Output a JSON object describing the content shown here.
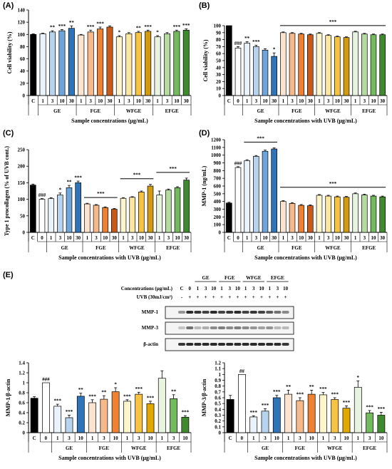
{
  "panels": [
    {
      "label": "(A)"
    },
    {
      "label": "(B)"
    },
    {
      "label": "(C)"
    },
    {
      "label": "(D)"
    },
    {
      "label": "(E)"
    }
  ],
  "chart_data": [
    {
      "id": "A",
      "type": "bar",
      "ylabel": "Cell viability (%)",
      "xlabel": "Sample concentrations (μg/mL)",
      "ylim": [
        0,
        140
      ],
      "yticks": [
        0,
        20,
        40,
        60,
        80,
        100,
        120,
        140
      ],
      "categories": [
        "C",
        "1",
        "3",
        "10",
        "30",
        "1",
        "3",
        "10",
        "30",
        "1",
        "3",
        "10",
        "30",
        "1",
        "3",
        "10",
        "30"
      ],
      "groups": [
        {
          "name": "GE",
          "from": 1,
          "to": 4
        },
        {
          "name": "FGE",
          "from": 5,
          "to": 8
        },
        {
          "name": "WFGE",
          "from": 9,
          "to": 12
        },
        {
          "name": "EFGE",
          "from": 13,
          "to": 16
        }
      ],
      "values": [
        100,
        101,
        104,
        106,
        110,
        99,
        104,
        109,
        112,
        96,
        101,
        103,
        105,
        96,
        101,
        105,
        107
      ],
      "errors": [
        1,
        1,
        2,
        2,
        4,
        1,
        3,
        3,
        2,
        2,
        2,
        2,
        2,
        2,
        2,
        2,
        2
      ],
      "colors": [
        "#000000",
        "#eaf2fb",
        "#b8d3ee",
        "#6ea6dc",
        "#2f73b8",
        "#fde4d0",
        "#f8b98a",
        "#ef8133",
        "#c85a17",
        "#fff5cc",
        "#fde6a0",
        "#f6c343",
        "#d19a0f",
        "#e8f3e0",
        "#b5dba0",
        "#73b95d",
        "#3f8a2d"
      ],
      "annotations": [
        "",
        "",
        "**",
        "***",
        "**",
        "",
        "***",
        "***",
        "",
        "*",
        "",
        "**",
        "***",
        "*",
        "",
        "***",
        "***"
      ]
    },
    {
      "id": "B",
      "type": "bar",
      "ylabel": "Cell viability (%)",
      "xlabel": "Sample concentrations with UVB (μg/mL)",
      "ylim": [
        0,
        100
      ],
      "yticks": [
        0,
        10,
        20,
        30,
        40,
        50,
        60,
        70,
        80,
        90,
        100
      ],
      "categories": [
        "C",
        "0",
        "1",
        "3",
        "10",
        "30",
        "1",
        "3",
        "10",
        "30",
        "1",
        "3",
        "10",
        "30",
        "1",
        "3",
        "10",
        "30"
      ],
      "groups": [
        {
          "name": "GE",
          "from": 2,
          "to": 5
        },
        {
          "name": "FGE",
          "from": 6,
          "to": 9
        },
        {
          "name": "WFGE",
          "from": 10,
          "to": 13
        },
        {
          "name": "EFGE",
          "from": 14,
          "to": 17
        }
      ],
      "values": [
        100,
        68,
        75,
        70,
        65,
        56,
        90,
        89,
        88,
        87,
        89,
        86,
        84,
        83,
        91,
        88,
        87,
        87
      ],
      "errors": [
        0,
        2,
        2,
        2,
        2,
        5,
        1,
        1,
        1,
        1,
        1,
        1,
        1,
        1,
        1,
        1,
        1,
        1
      ],
      "colors": [
        "#000000",
        "#ffffff",
        "#eaf2fb",
        "#b8d3ee",
        "#6ea6dc",
        "#2f73b8",
        "#fde4d0",
        "#f8b98a",
        "#ef8133",
        "#c85a17",
        "#fff5cc",
        "#fde6a0",
        "#f6c343",
        "#d19a0f",
        "#e8f3e0",
        "#b5dba0",
        "#73b95d",
        "#3f8a2d"
      ],
      "annotations": [
        "",
        "###",
        "**",
        "***",
        "",
        "*",
        "",
        "",
        "",
        "",
        "",
        "",
        "",
        "",
        "",
        "",
        "",
        ""
      ],
      "bracket": {
        "from": 6,
        "to": 17,
        "label": "***"
      }
    },
    {
      "id": "C",
      "type": "bar",
      "ylabel": "Type 1 procollagen (% of UVB cont.)",
      "xlabel": "Sample concentrations with UVB (μg/mL)",
      "ylim": [
        0,
        250
      ],
      "yticks": [
        0,
        50,
        100,
        150,
        200,
        250
      ],
      "categories": [
        "C",
        "0",
        "1",
        "3",
        "10",
        "30",
        "1",
        "3",
        "10",
        "30",
        "1",
        "3",
        "10",
        "30",
        "1",
        "3",
        "10",
        "30"
      ],
      "groups": [
        {
          "name": "GE",
          "from": 2,
          "to": 5
        },
        {
          "name": "FGE",
          "from": 6,
          "to": 9
        },
        {
          "name": "WFGE",
          "from": 10,
          "to": 13
        },
        {
          "name": "EFGE",
          "from": 14,
          "to": 17
        }
      ],
      "values": [
        143,
        100,
        102,
        113,
        135,
        150,
        86,
        82,
        75,
        70,
        103,
        106,
        122,
        140,
        113,
        128,
        135,
        158
      ],
      "errors": [
        3,
        2,
        3,
        6,
        7,
        5,
        2,
        2,
        2,
        2,
        2,
        2,
        3,
        5,
        12,
        3,
        3,
        6
      ],
      "colors": [
        "#000000",
        "#ffffff",
        "#eaf2fb",
        "#b8d3ee",
        "#6ea6dc",
        "#2f73b8",
        "#fde4d0",
        "#f8b98a",
        "#ef8133",
        "#c85a17",
        "#fff5cc",
        "#fde6a0",
        "#f6c343",
        "#d19a0f",
        "#e8f3e0",
        "#b5dba0",
        "#73b95d",
        "#3f8a2d"
      ],
      "annotations": [
        "",
        "###",
        "",
        "*",
        "**",
        "***",
        "",
        "",
        "",
        "",
        "",
        "",
        "",
        "",
        "",
        "",
        "",
        ""
      ],
      "brackets": [
        {
          "from": 6,
          "to": 9,
          "label": "***"
        },
        {
          "from": 10,
          "to": 13,
          "label": "***"
        },
        {
          "from": 14,
          "to": 17,
          "label": "***"
        }
      ]
    },
    {
      "id": "D",
      "type": "bar",
      "ylabel": "MMP-1 (ng/mL)",
      "xlabel": "Sample concentrations with UVB (μg/mL)",
      "ylim": [
        0,
        1200
      ],
      "yticks": [
        0,
        100,
        200,
        300,
        400,
        500,
        600,
        700,
        800,
        900,
        1000,
        1100,
        1200
      ],
      "categories": [
        "C",
        "0",
        "1",
        "3",
        "10",
        "30",
        "1",
        "3",
        "10",
        "30",
        "1",
        "3",
        "10",
        "30",
        "1",
        "3",
        "10",
        "30"
      ],
      "groups": [
        {
          "name": "GE",
          "from": 2,
          "to": 5
        },
        {
          "name": "FGE",
          "from": 6,
          "to": 9
        },
        {
          "name": "WFGE",
          "from": 10,
          "to": 13
        },
        {
          "name": "EFGE",
          "from": 14,
          "to": 17
        }
      ],
      "values": [
        380,
        840,
        930,
        985,
        1050,
        1080,
        400,
        375,
        350,
        345,
        480,
        470,
        460,
        455,
        500,
        485,
        470,
        460
      ],
      "errors": [
        10,
        10,
        10,
        10,
        15,
        15,
        10,
        10,
        10,
        10,
        10,
        10,
        10,
        10,
        10,
        10,
        10,
        10
      ],
      "colors": [
        "#000000",
        "#ffffff",
        "#eaf2fb",
        "#b8d3ee",
        "#6ea6dc",
        "#2f73b8",
        "#fde4d0",
        "#f8b98a",
        "#ef8133",
        "#c85a17",
        "#fff5cc",
        "#fde6a0",
        "#f6c343",
        "#d19a0f",
        "#e8f3e0",
        "#b5dba0",
        "#73b95d",
        "#3f8a2d"
      ],
      "annotations": [
        "",
        "###",
        "",
        "",
        "",
        "",
        "",
        "",
        "",
        "",
        "",
        "",
        "",
        "",
        "",
        "",
        "",
        ""
      ],
      "brackets": [
        {
          "from": 2,
          "to": 5,
          "label": "***"
        },
        {
          "from": 6,
          "to": 17,
          "label": "***"
        }
      ]
    },
    {
      "id": "E1",
      "type": "bar",
      "ylabel": "MMP-1/β-actin",
      "xlabel": "Sample concentrations with UVB (μg/mL)",
      "ylim": [
        0,
        1.4
      ],
      "yticks": [
        0,
        0.2,
        0.4,
        0.6,
        0.8,
        1,
        1.2,
        1.4
      ],
      "categories": [
        "C",
        "0",
        "1",
        "3",
        "10",
        "1",
        "3",
        "10",
        "1",
        "3",
        "10",
        "1",
        "3",
        "10"
      ],
      "groups": [
        {
          "name": "GE",
          "from": 2,
          "to": 4
        },
        {
          "name": "FGE",
          "from": 5,
          "to": 7
        },
        {
          "name": "WFGE",
          "from": 8,
          "to": 10
        },
        {
          "name": "EFGE",
          "from": 11,
          "to": 13
        }
      ],
      "values": [
        0.69,
        1.0,
        0.53,
        0.3,
        0.73,
        0.6,
        0.67,
        0.82,
        0.63,
        0.77,
        0.58,
        1.09,
        0.68,
        0.31
      ],
      "errors": [
        0.03,
        0,
        0.04,
        0.05,
        0.06,
        0.06,
        0.07,
        0.08,
        0.03,
        0.04,
        0.05,
        0.15,
        0.08,
        0.03
      ],
      "colors": [
        "#000000",
        "#ffffff",
        "#eaf2fb",
        "#b8d3ee",
        "#2f73b8",
        "#fde4d0",
        "#f8b98a",
        "#ef8133",
        "#fff5cc",
        "#f6c343",
        "#e0a800",
        "#e8f3e0",
        "#73b95d",
        "#3f8a2d"
      ],
      "annotations": [
        "",
        "###",
        "***",
        "***",
        "**",
        "***",
        "**",
        "*",
        "***",
        "***",
        "***",
        "",
        "**",
        "***"
      ]
    },
    {
      "id": "E2",
      "type": "bar",
      "ylabel": "MMP-3/β-actin",
      "xlabel": "Sample concentrations with UVB (μg/mL)",
      "ylim": [
        0,
        1.2
      ],
      "yticks": [
        0,
        0.1,
        0.2,
        0.3,
        0.4,
        0.5,
        0.6,
        0.7,
        0.8,
        0.9,
        1,
        1.1,
        1.2
      ],
      "categories": [
        "C",
        "0",
        "1",
        "3",
        "10",
        "1",
        "3",
        "10",
        "1",
        "3",
        "10",
        "1",
        "3",
        "10"
      ],
      "groups": [
        {
          "name": "GE",
          "from": 2,
          "to": 4
        },
        {
          "name": "FGE",
          "from": 5,
          "to": 7
        },
        {
          "name": "WFGE",
          "from": 8,
          "to": 10
        },
        {
          "name": "EFGE",
          "from": 11,
          "to": 13
        }
      ],
      "values": [
        0.57,
        1.0,
        0.27,
        0.37,
        0.6,
        0.66,
        0.55,
        0.66,
        0.65,
        0.57,
        0.42,
        0.78,
        0.34,
        0.3
      ],
      "errors": [
        0.07,
        0,
        0.02,
        0.04,
        0.04,
        0.07,
        0.05,
        0.07,
        0.04,
        0.03,
        0.04,
        0.11,
        0.04,
        0.05
      ],
      "colors": [
        "#000000",
        "#ffffff",
        "#eaf2fb",
        "#b8d3ee",
        "#2f73b8",
        "#fde4d0",
        "#f8b98a",
        "#ef8133",
        "#fff5cc",
        "#f6c343",
        "#e0a800",
        "#e8f3e0",
        "#73b95d",
        "#3f8a2d"
      ],
      "annotations": [
        "",
        "##",
        "***",
        "***",
        "***",
        "**",
        "***",
        "**",
        "***",
        "***",
        "***",
        "*",
        "***",
        "***"
      ]
    }
  ],
  "blot": {
    "groups": [
      "GE",
      "FGE",
      "WFGE",
      "EFGE"
    ],
    "conc_label": "Concentrations (μg/mL)",
    "conc_values": [
      "C",
      "0",
      "1",
      "3",
      "10",
      "1",
      "3",
      "10",
      "1",
      "3",
      "10",
      "1",
      "3",
      "10"
    ],
    "uvb_label": "UVB (30mJ/cm²)",
    "uvb_values": [
      "-",
      "+",
      "+",
      "+",
      "+",
      "+",
      "+",
      "+",
      "+",
      "+",
      "+",
      "+",
      "+",
      "+"
    ],
    "rows": [
      "MMP-1",
      "MMP-3",
      "β-actin"
    ]
  }
}
